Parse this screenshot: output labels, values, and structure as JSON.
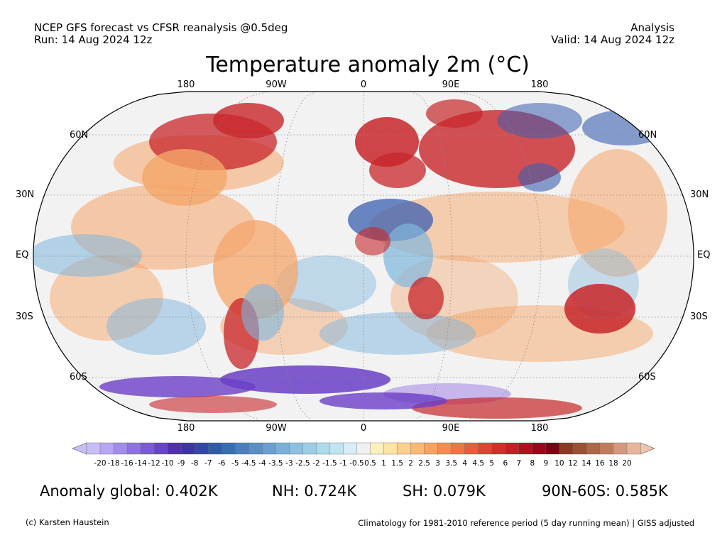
{
  "header": {
    "left_line1": "NCEP GFS forecast vs CFSR reanalysis @0.5deg",
    "left_line2": "Run: 14 Aug 2024 12z",
    "right_line1": "Analysis",
    "right_line2": "Valid: 14 Aug 2024 12z"
  },
  "title": "Temperature anomaly 2m (°C)",
  "map": {
    "lon_labels": [
      "180",
      "90W",
      "0",
      "90E",
      "180"
    ],
    "lat_labels": [
      "60N",
      "30N",
      "EQ",
      "30S",
      "60S"
    ],
    "colors": {
      "ocean_neutral": "#f2f2f2",
      "warm": "#f5a66a",
      "hot": "#c8262a",
      "cool": "#7fb6dd",
      "cold": "#3a5fb0",
      "very_cold": "#6a3fc8",
      "extreme_cold": "#a98de6"
    }
  },
  "legend": {
    "tick_labels": [
      "-20",
      "-18",
      "-16",
      "-14",
      "-12",
      "-10",
      "-9",
      "-8",
      "-7",
      "-6",
      "-5",
      "-4.5",
      "-4",
      "-3.5",
      "-3",
      "-2.5",
      "-2",
      "-1.5",
      "-1",
      "-0.5",
      "0.5",
      "1",
      "1.5",
      "2",
      "2.5",
      "3",
      "3.5",
      "4",
      "4.5",
      "5",
      "6",
      "7",
      "8",
      "9",
      "10",
      "12",
      "14",
      "16",
      "18",
      "20"
    ],
    "colors": [
      "#c9bdf7",
      "#b7a6f1",
      "#a28ceb",
      "#8e73e0",
      "#7b5bd3",
      "#6646c3",
      "#5230a6",
      "#40359e",
      "#3248a3",
      "#2f5ba8",
      "#3a6cb3",
      "#4a7ebd",
      "#5a8fc6",
      "#6aa0cf",
      "#7bb1d8",
      "#8bc1df",
      "#9ccde6",
      "#addaed",
      "#c1e4f2",
      "#d8eef7",
      "#f0f0f0",
      "#fdf0c0",
      "#fde3a4",
      "#fcd08a",
      "#fab872",
      "#f7a35f",
      "#f38c51",
      "#ee7545",
      "#e75d3b",
      "#df4532",
      "#d42e2a",
      "#c81d24",
      "#b3101f",
      "#98081a",
      "#7a0013",
      "#8a3a22",
      "#9b4f33",
      "#ad6647",
      "#c07d5e",
      "#d39a7f",
      "#e6b59b"
    ],
    "low_arrow_color": "#c9bdf7",
    "high_arrow_color": "#f0c4aa"
  },
  "stats": {
    "global": "Anomaly global: 0.402K",
    "nh": "NH: 0.724K",
    "sh": "SH: 0.079K",
    "arctic_band": "90N-60S: 0.585K"
  },
  "footer": {
    "credit": "(c) Karsten Haustein",
    "note": "Climatology for 1981-2010 reference period (5 day running mean) | GISS adjusted"
  }
}
